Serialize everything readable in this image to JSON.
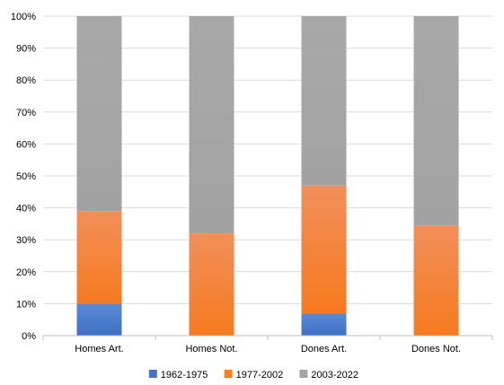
{
  "chart_data": {
    "type": "bar",
    "stacked": true,
    "percent_stacked": true,
    "categories": [
      "Homes Art.",
      "Homes Not.",
      "Dones Art.",
      "Dones Not."
    ],
    "series": [
      {
        "name": "1962-1975",
        "values": [
          10,
          0,
          7,
          0
        ],
        "color": "#4472c4"
      },
      {
        "name": "1977-2002",
        "values": [
          29,
          32,
          40,
          34.5
        ],
        "color": "#f4812a"
      },
      {
        "name": "2003-2022",
        "values": [
          61,
          68,
          53,
          65.5
        ],
        "color": "#a5a5a5"
      }
    ],
    "y_ticks": [
      "0%",
      "10%",
      "20%",
      "30%",
      "40%",
      "50%",
      "60%",
      "70%",
      "80%",
      "90%",
      "100%"
    ],
    "ylim": [
      0,
      100
    ],
    "grid": true,
    "legend_position": "bottom",
    "title": "",
    "xlabel": "",
    "ylabel": ""
  }
}
